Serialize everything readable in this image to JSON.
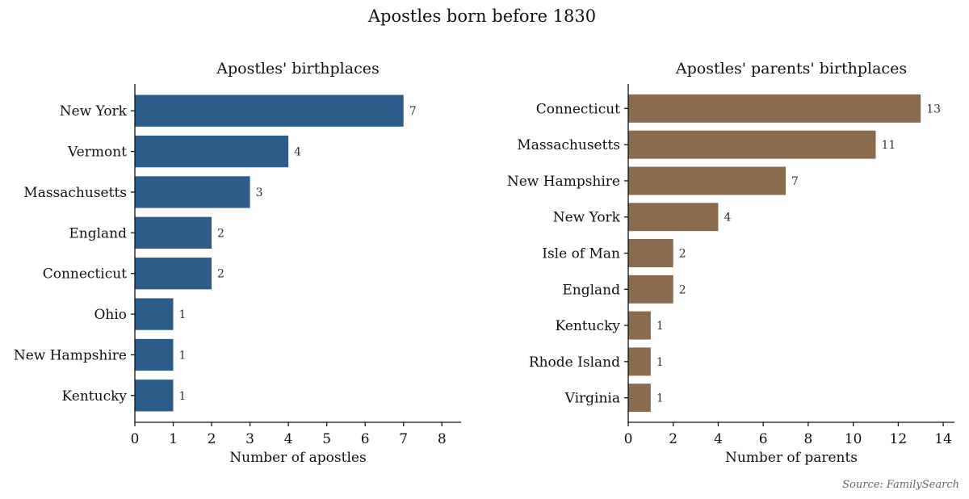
{
  "figure": {
    "title": "Apostles born before 1830",
    "source": "Source: FamilySearch"
  },
  "chart_data": [
    {
      "type": "bar",
      "orientation": "horizontal",
      "title": "Apostles' birthplaces",
      "xlabel": "Number of apostles",
      "ylabel": "",
      "xlim": [
        0,
        8.5
      ],
      "xticks": [
        0,
        1,
        2,
        3,
        4,
        5,
        6,
        7,
        8
      ],
      "categories": [
        "New York",
        "Vermont",
        "Massachusetts",
        "England",
        "Connecticut",
        "Ohio",
        "New Hampshire",
        "Kentucky"
      ],
      "values": [
        7,
        4,
        3,
        2,
        2,
        1,
        1,
        1
      ],
      "color": "#2c5d8a"
    },
    {
      "type": "bar",
      "orientation": "horizontal",
      "title": "Apostles' parents' birthplaces",
      "xlabel": "Number of parents",
      "ylabel": "",
      "xlim": [
        0,
        14.5
      ],
      "xticks": [
        0,
        2,
        4,
        6,
        8,
        10,
        12,
        14
      ],
      "categories": [
        "Connecticut",
        "Massachusetts",
        "New Hampshire",
        "New York",
        "Isle of Man",
        "England",
        "Kentucky",
        "Rhode Island",
        "Virginia"
      ],
      "values": [
        13,
        11,
        7,
        4,
        2,
        2,
        1,
        1,
        1
      ],
      "color": "#8b6b4e"
    }
  ]
}
